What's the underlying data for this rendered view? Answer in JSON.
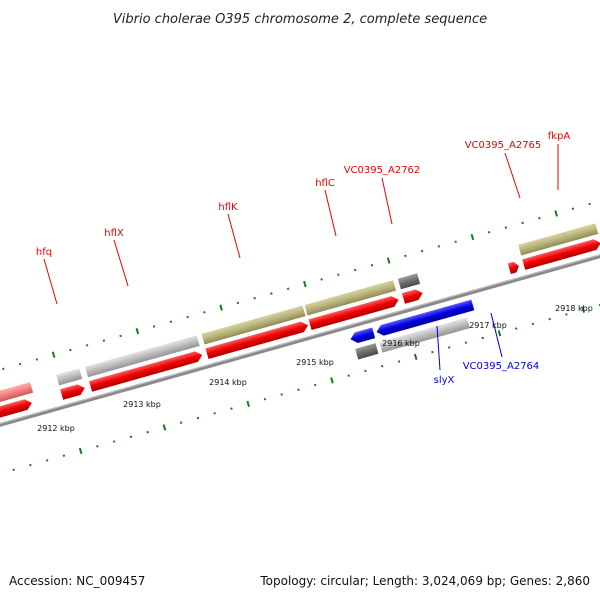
{
  "title": "Vibrio cholerae O395 chromosome 2, complete sequence",
  "footer": {
    "accession": "Accession: NC_009457",
    "summary": "Topology: circular; Length: 3,024,069 bp; Genes: 2,860"
  },
  "colors": {
    "forward": "#ee0000",
    "reverse": "#0000dd",
    "gene_forward": "#b8b47a",
    "gene_grey": "#bdbdbd",
    "gene_dark": "#6e6e6e",
    "tick": "#1c7a1c",
    "backbone": "#8a8a8a"
  },
  "kbp_labels": [
    "2912 kbp",
    "2913 kbp",
    "2914 kbp",
    "2915 kbp",
    "2916 kbp",
    "2917 kbp",
    "2918 kbp"
  ],
  "forward_labels": [
    "hfq",
    "hflX",
    "hflK",
    "hflC",
    "VC0395_A2762",
    "VC0395_A2765",
    "fkpA"
  ],
  "reverse_labels": [
    "slyX",
    "VC0395_A2764"
  ]
}
